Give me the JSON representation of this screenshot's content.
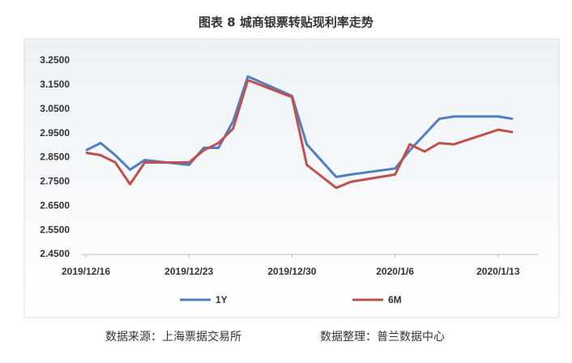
{
  "chart_data": {
    "type": "line",
    "title": "图表 8  城商银票转贴现利率走势",
    "x": [
      "2019/12/16",
      "2019/12/17",
      "2019/12/18",
      "2019/12/19",
      "2019/12/20",
      "2019/12/23",
      "2019/12/24",
      "2019/12/25",
      "2019/12/26",
      "2019/12/27",
      "2019/12/30",
      "2019/12/31",
      "2020/1/2",
      "2020/1/3",
      "2020/1/6",
      "2020/1/7",
      "2020/1/8",
      "2020/1/9",
      "2020/1/10",
      "2020/1/13",
      "2020/1/14"
    ],
    "series": [
      {
        "name": "1Y",
        "color": "#4f7fbf",
        "values": [
          2.88,
          2.91,
          2.86,
          2.8,
          2.84,
          2.82,
          2.89,
          2.89,
          3.0,
          3.185,
          3.105,
          2.905,
          2.77,
          2.78,
          2.805,
          2.88,
          2.945,
          3.01,
          3.02,
          3.02,
          3.01
        ]
      },
      {
        "name": "6M",
        "color": "#c0504d",
        "values": [
          2.87,
          2.86,
          2.83,
          2.74,
          2.83,
          2.83,
          2.88,
          2.91,
          2.97,
          3.17,
          3.1,
          2.82,
          2.725,
          2.75,
          2.78,
          2.905,
          2.875,
          2.91,
          2.905,
          2.965,
          2.955
        ]
      }
    ],
    "xlim": [
      "2019/12/16",
      "2020/1/14"
    ],
    "xticks": [
      "2019/12/16",
      "2019/12/23",
      "2019/12/30",
      "2020/1/6",
      "2020/1/13"
    ],
    "ylim": [
      2.45,
      3.25
    ],
    "yticks": [
      {
        "value": 2.45,
        "label": "2.4500"
      },
      {
        "value": 2.55,
        "label": "2.5500"
      },
      {
        "value": 2.65,
        "label": "2.6500"
      },
      {
        "value": 2.75,
        "label": "2.7500"
      },
      {
        "value": 2.85,
        "label": "2.8500"
      },
      {
        "value": 2.95,
        "label": "2.9500"
      },
      {
        "value": 3.05,
        "label": "3.0500"
      },
      {
        "value": 3.15,
        "label": "3.1500"
      },
      {
        "value": 3.25,
        "label": "3.2500"
      }
    ],
    "grid": false,
    "source": "数据来源：上海票据交易所",
    "note": "数据整理：普兰数据中心"
  }
}
